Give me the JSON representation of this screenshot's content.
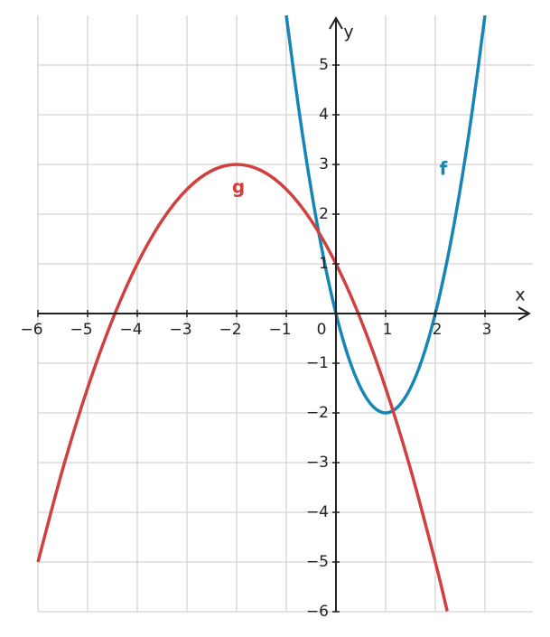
{
  "chart_data": {
    "type": "line",
    "x_label": "x",
    "y_label": "y",
    "xlim": [
      -6,
      3.9
    ],
    "ylim": [
      -6,
      6
    ],
    "xticks": [
      {
        "value": -6,
        "label": "−6"
      },
      {
        "value": -5,
        "label": "−5"
      },
      {
        "value": -4,
        "label": "−4"
      },
      {
        "value": -3,
        "label": "−3"
      },
      {
        "value": -2,
        "label": "−2"
      },
      {
        "value": -1,
        "label": "−1"
      },
      0,
      1,
      2,
      3
    ],
    "yticks": [
      {
        "value": -6,
        "label": "−6"
      },
      {
        "value": -5,
        "label": "−5"
      },
      {
        "value": -4,
        "label": "−4"
      },
      {
        "value": -3,
        "label": "−3"
      },
      {
        "value": -2,
        "label": "−2"
      },
      {
        "value": -1,
        "label": "−1"
      },
      1,
      2,
      3,
      4,
      5
    ],
    "grid": true,
    "series": [
      {
        "name": "f",
        "color": "#1786b6",
        "x": [
          -1,
          -0.75,
          -0.5,
          -0.25,
          0,
          0.25,
          0.5,
          0.75,
          1,
          1.25,
          1.5,
          1.75,
          2,
          2.25,
          2.5,
          2.75,
          3
        ],
        "values": [
          6,
          4.125,
          2.5,
          1.125,
          0,
          -0.875,
          -1.5,
          -1.875,
          -2,
          -1.875,
          -1.5,
          -0.875,
          0,
          1.125,
          2.5,
          4.125,
          6
        ]
      },
      {
        "name": "g",
        "color": "#d0403f",
        "x": [
          -6,
          -5.5,
          -5,
          -4.5,
          -4,
          -3.5,
          -3,
          -2.5,
          -2,
          -1.5,
          -1,
          -0.5,
          0,
          0.5,
          1,
          1.5,
          2,
          2.24
        ],
        "values": [
          -5,
          -3.125,
          -1.5,
          -0.125,
          1,
          1.875,
          2.5,
          2.875,
          3,
          2.875,
          2.5,
          1.875,
          1,
          -0.125,
          -1.5,
          -3.125,
          -5,
          -5.99
        ]
      }
    ]
  }
}
